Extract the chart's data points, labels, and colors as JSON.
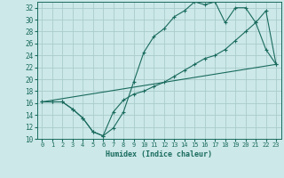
{
  "xlabel": "Humidex (Indice chaleur)",
  "bg_color": "#cce8e8",
  "grid_color": "#aacccc",
  "line_color": "#1a6b5e",
  "xlim": [
    -0.5,
    23.5
  ],
  "ylim": [
    10,
    33
  ],
  "xticks": [
    0,
    1,
    2,
    3,
    4,
    5,
    6,
    7,
    8,
    9,
    10,
    11,
    12,
    13,
    14,
    15,
    16,
    17,
    18,
    19,
    20,
    21,
    22,
    23
  ],
  "yticks": [
    10,
    12,
    14,
    16,
    18,
    20,
    22,
    24,
    26,
    28,
    30,
    32
  ],
  "line1_x": [
    0,
    1,
    2,
    3,
    4,
    5,
    6,
    7,
    8,
    9,
    10,
    11,
    12,
    13,
    14,
    15,
    16,
    17,
    18,
    19,
    20,
    21,
    22,
    23
  ],
  "line1_y": [
    16.2,
    16.2,
    16.2,
    15.0,
    13.5,
    11.2,
    10.5,
    11.8,
    14.5,
    19.5,
    24.5,
    27.2,
    28.5,
    30.5,
    31.5,
    33.0,
    32.5,
    33.0,
    29.5,
    32.0,
    32.0,
    29.5,
    25.0,
    22.5
  ],
  "line2_x": [
    0,
    1,
    2,
    3,
    4,
    5,
    6,
    7,
    8,
    9,
    10,
    11,
    12,
    13,
    14,
    15,
    16,
    17,
    18,
    19,
    20,
    21,
    22,
    23
  ],
  "line2_y": [
    16.2,
    16.2,
    16.2,
    15.0,
    13.5,
    11.2,
    10.5,
    14.5,
    16.5,
    17.5,
    18.0,
    18.8,
    19.5,
    20.5,
    21.5,
    22.5,
    23.5,
    24.0,
    25.0,
    26.5,
    28.0,
    29.5,
    31.5,
    22.5
  ],
  "line3_x": [
    0,
    23
  ],
  "line3_y": [
    16.2,
    22.5
  ]
}
